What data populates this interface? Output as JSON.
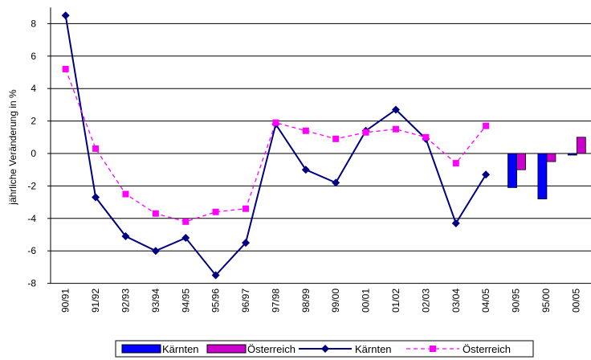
{
  "chart_data": {
    "type": "line",
    "title": "",
    "xlabel": "",
    "ylabel": "jährliche Veränderung in %",
    "ylim": [
      -8,
      9
    ],
    "yticks": [
      8,
      6,
      4,
      2,
      0,
      -2,
      -4,
      -6,
      -8
    ],
    "categories": [
      "90/91",
      "91/92",
      "92/93",
      "93/94",
      "94/95",
      "95/96",
      "96/97",
      "97/98",
      "98/99",
      "99/00",
      "00/01",
      "01/02",
      "02/03",
      "03/04",
      "04/05",
      "90/95",
      "95/00",
      "00/05"
    ],
    "grid": true,
    "legend_position": "bottom",
    "line_series": [
      {
        "name": "Kärnten",
        "color": "#000080",
        "marker": "diamond",
        "style": "solid",
        "values": [
          8.5,
          -2.7,
          -5.1,
          -6.0,
          -5.2,
          -7.5,
          -5.5,
          1.8,
          -1.0,
          -1.8,
          1.4,
          2.7,
          0.9,
          -4.3,
          -1.3,
          null,
          null,
          null
        ]
      },
      {
        "name": "Österreich",
        "color": "#ff00ff",
        "marker": "square",
        "style": "dashed",
        "values": [
          5.2,
          0.3,
          -2.5,
          -3.7,
          -4.2,
          -3.6,
          -3.4,
          1.9,
          1.4,
          0.9,
          1.3,
          1.5,
          1.0,
          -0.6,
          1.7,
          null,
          null,
          null
        ]
      }
    ],
    "bar_series": [
      {
        "name": "Kärnten",
        "color": "#0000ff",
        "values": [
          null,
          null,
          null,
          null,
          null,
          null,
          null,
          null,
          null,
          null,
          null,
          null,
          null,
          null,
          null,
          -2.1,
          -2.8,
          -0.1
        ]
      },
      {
        "name": "Österreich",
        "color": "#cc00cc",
        "values": [
          null,
          null,
          null,
          null,
          null,
          null,
          null,
          null,
          null,
          null,
          null,
          null,
          null,
          null,
          null,
          -1.0,
          -0.5,
          1.0
        ]
      }
    ],
    "legend": [
      {
        "label": "Kärnten",
        "kind": "bar",
        "color": "#0000ff"
      },
      {
        "label": "Österreich",
        "kind": "bar",
        "color": "#cc00cc"
      },
      {
        "label": "Kärnten",
        "kind": "line",
        "color": "#000080"
      },
      {
        "label": "Österreich",
        "kind": "line",
        "color": "#ff00ff"
      }
    ]
  }
}
